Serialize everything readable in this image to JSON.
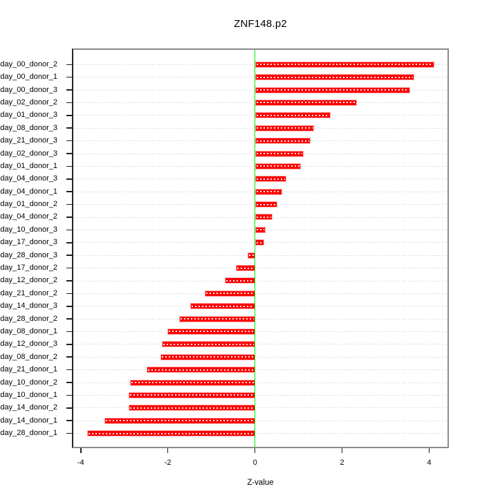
{
  "chart_data": {
    "type": "bar",
    "orientation": "horizontal",
    "title": "ZNF148.p2",
    "xlabel": "Z-value",
    "ylabel": "",
    "categories": [
      "day_00_donor_2",
      "day_00_donor_1",
      "day_00_donor_3",
      "day_02_donor_2",
      "day_01_donor_3",
      "day_08_donor_3",
      "day_21_donor_3",
      "day_02_donor_3",
      "day_01_donor_1",
      "day_04_donor_3",
      "day_04_donor_1",
      "day_01_donor_2",
      "day_04_donor_2",
      "day_10_donor_3",
      "day_17_donor_3",
      "day_28_donor_3",
      "day_17_donor_2",
      "day_12_donor_2",
      "day_21_donor_2",
      "day_14_donor_3",
      "day_28_donor_2",
      "day_08_donor_1",
      "day_12_donor_3",
      "day_08_donor_2",
      "day_21_donor_1",
      "day_10_donor_2",
      "day_10_donor_1",
      "day_14_donor_2",
      "day_14_donor_1",
      "day_28_donor_1"
    ],
    "values": [
      4.12,
      3.66,
      3.56,
      2.34,
      1.74,
      1.36,
      1.28,
      1.12,
      1.06,
      0.72,
      0.62,
      0.51,
      0.4,
      0.24,
      0.21,
      -0.17,
      -0.44,
      -0.7,
      -1.16,
      -1.48,
      -1.74,
      -2.01,
      -2.13,
      -2.17,
      -2.49,
      -2.87,
      -2.9,
      -2.9,
      -3.46,
      -3.86
    ],
    "xlim": [
      -4.17,
      4.42
    ],
    "xticks": [
      {
        "value": -4,
        "label": "-4"
      },
      {
        "value": -2,
        "label": "-2"
      },
      {
        "value": 0,
        "label": "0"
      },
      {
        "value": 2,
        "label": "2"
      },
      {
        "value": 4,
        "label": "4"
      }
    ],
    "grid": "dotted-horizontal-per-row",
    "legend": "none",
    "zero_line": true,
    "colors": {
      "bar": "#fa0000",
      "bar_border": "#ffa8a8",
      "bar_dash": "#ffffff",
      "zero_line": "#00ee00",
      "grid": "#c9c9c9",
      "box_border": "#8b8b8b",
      "axis": "#1f1f1f",
      "text": "#000000",
      "background": "#ffffff"
    }
  }
}
